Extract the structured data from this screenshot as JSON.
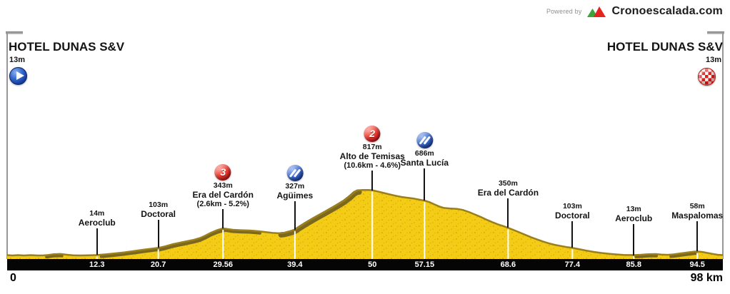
{
  "powered_by": {
    "label": "Powered by",
    "brand": "Cronoescalada.com"
  },
  "start": {
    "title": "HOTEL DUNAS S&V",
    "elevation": "13m"
  },
  "finish": {
    "title": "HOTEL DUNAS S&V",
    "elevation": "13m"
  },
  "colors": {
    "profile_fill": "#F4CC16",
    "profile_edge": "#9A7F1A",
    "slope_shading": "#7C671E",
    "axis_bar": "#050505",
    "category_badge_red": "#D11A20",
    "sprint_badge_blue": "#2A53B5",
    "tick_white": "#FFFFFF"
  },
  "chart_data": {
    "type": "area",
    "title": "Stage elevation profile",
    "x_unit": "km",
    "y_unit": "m",
    "x_range": [
      0,
      98
    ],
    "start_label": "0",
    "end_label": "98 km",
    "axis_ticks": [
      {
        "km": 12.3,
        "label": "12.3"
      },
      {
        "km": 20.7,
        "label": "20.7"
      },
      {
        "km": 29.56,
        "label": "29.56"
      },
      {
        "km": 39.4,
        "label": "39.4"
      },
      {
        "km": 50,
        "label": "50"
      },
      {
        "km": 57.15,
        "label": "57.15"
      },
      {
        "km": 68.6,
        "label": "68.6"
      },
      {
        "km": 77.4,
        "label": "77.4"
      },
      {
        "km": 85.8,
        "label": "85.8"
      },
      {
        "km": 94.5,
        "label": "94.5"
      }
    ],
    "waypoints": [
      {
        "km": 12.3,
        "elevation": "14m",
        "name": "Aeroclub",
        "badge": null,
        "detail": null
      },
      {
        "km": 20.7,
        "elevation": "103m",
        "name": "Doctoral",
        "badge": null,
        "detail": null
      },
      {
        "km": 29.56,
        "elevation": "343m",
        "name": "Era del Cardón",
        "badge": "category",
        "badge_label": "3",
        "detail": "(2.6km - 5.2%)"
      },
      {
        "km": 39.4,
        "elevation": "327m",
        "name": "Agüimes",
        "badge": "sprint",
        "detail": null
      },
      {
        "km": 50,
        "elevation": "817m",
        "name": "Alto de Temisas",
        "badge": "category",
        "badge_label": "2",
        "detail": "(10.6km - 4.6%)"
      },
      {
        "km": 57.15,
        "elevation": "686m",
        "name": "Santa Lucía",
        "badge": "sprint",
        "detail": null
      },
      {
        "km": 68.6,
        "elevation": "350m",
        "name": "Era del Cardón",
        "badge": null,
        "detail": null
      },
      {
        "km": 77.4,
        "elevation": "103m",
        "name": "Doctoral",
        "badge": null,
        "detail": null
      },
      {
        "km": 85.8,
        "elevation": "13m",
        "name": "Aeroclub",
        "badge": null,
        "detail": null
      },
      {
        "km": 94.5,
        "elevation": "58m",
        "name": "Maspalomas",
        "badge": null,
        "detail": null
      }
    ],
    "profile": [
      [
        0,
        13
      ],
      [
        0.7,
        9
      ],
      [
        1.5,
        13
      ],
      [
        2.3,
        9
      ],
      [
        3.2,
        13
      ],
      [
        4.2,
        9
      ],
      [
        5,
        10
      ],
      [
        5.6,
        14
      ],
      [
        6.3,
        24
      ],
      [
        7.3,
        27
      ],
      [
        8.2,
        18
      ],
      [
        9,
        11
      ],
      [
        10,
        9
      ],
      [
        11.2,
        11
      ],
      [
        12.3,
        14
      ],
      [
        13.4,
        22
      ],
      [
        14.6,
        33
      ],
      [
        16,
        47
      ],
      [
        17.4,
        63
      ],
      [
        18.8,
        81
      ],
      [
        20,
        95
      ],
      [
        20.7,
        103
      ],
      [
        21.6,
        121
      ],
      [
        22.6,
        146
      ],
      [
        23.6,
        166
      ],
      [
        24.6,
        184
      ],
      [
        25.6,
        203
      ],
      [
        26.4,
        224
      ],
      [
        27.1,
        252
      ],
      [
        27.9,
        290
      ],
      [
        28.8,
        323
      ],
      [
        29.56,
        343
      ],
      [
        30.1,
        337
      ],
      [
        30.9,
        326
      ],
      [
        32,
        321
      ],
      [
        33.2,
        317
      ],
      [
        34.4,
        308
      ],
      [
        35.4,
        297
      ],
      [
        36.4,
        287
      ],
      [
        37.2,
        283
      ],
      [
        38,
        290
      ],
      [
        38.8,
        309
      ],
      [
        39.4,
        327
      ],
      [
        40.3,
        380
      ],
      [
        41.2,
        430
      ],
      [
        42.2,
        482
      ],
      [
        43.2,
        532
      ],
      [
        44.2,
        582
      ],
      [
        45.2,
        634
      ],
      [
        46.2,
        690
      ],
      [
        47,
        745
      ],
      [
        47.6,
        795
      ],
      [
        48,
        813
      ],
      [
        48.7,
        817
      ],
      [
        49.5,
        817
      ],
      [
        50,
        814
      ],
      [
        50.7,
        800
      ],
      [
        51.6,
        780
      ],
      [
        52.4,
        762
      ],
      [
        53.2,
        746
      ],
      [
        54,
        731
      ],
      [
        55,
        719
      ],
      [
        55.7,
        711
      ],
      [
        56.4,
        699
      ],
      [
        57.15,
        686
      ],
      [
        57.8,
        668
      ],
      [
        58.5,
        640
      ],
      [
        59.2,
        612
      ],
      [
        59.8,
        596
      ],
      [
        60.6,
        589
      ],
      [
        61.6,
        584
      ],
      [
        62.4,
        571
      ],
      [
        63.2,
        546
      ],
      [
        64,
        516
      ],
      [
        64.8,
        486
      ],
      [
        65.6,
        453
      ],
      [
        66.4,
        421
      ],
      [
        67.2,
        393
      ],
      [
        68,
        369
      ],
      [
        68.6,
        350
      ],
      [
        69.4,
        322
      ],
      [
        70.2,
        292
      ],
      [
        71,
        262
      ],
      [
        71.8,
        232
      ],
      [
        72.6,
        205
      ],
      [
        73.4,
        180
      ],
      [
        74.2,
        158
      ],
      [
        75,
        140
      ],
      [
        75.8,
        126
      ],
      [
        76.6,
        113
      ],
      [
        77.4,
        103
      ],
      [
        78.4,
        85
      ],
      [
        79.4,
        68
      ],
      [
        80.4,
        52
      ],
      [
        81.4,
        40
      ],
      [
        82.4,
        30
      ],
      [
        83.4,
        22
      ],
      [
        84.4,
        16
      ],
      [
        85.8,
        13
      ],
      [
        86.8,
        18
      ],
      [
        87.8,
        25
      ],
      [
        88.8,
        26
      ],
      [
        89.6,
        20
      ],
      [
        90.4,
        17
      ],
      [
        91.2,
        22
      ],
      [
        92.2,
        34
      ],
      [
        93.2,
        46
      ],
      [
        94.1,
        56
      ],
      [
        94.5,
        58
      ],
      [
        95.2,
        52
      ],
      [
        95.9,
        40
      ],
      [
        96.6,
        28
      ],
      [
        97.3,
        18
      ],
      [
        98,
        13
      ]
    ]
  }
}
